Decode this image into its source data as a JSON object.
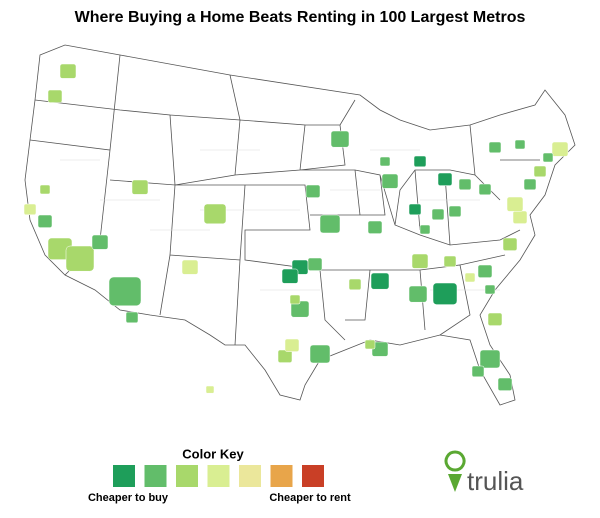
{
  "title": "Where Buying a Home Beats Renting in 100 Largest Metros",
  "color_key": {
    "title": "Color Key",
    "colors": [
      "#1e9e5a",
      "#62bd6a",
      "#a8d86b",
      "#d9ee92",
      "#ebe79b",
      "#e8a54a",
      "#c93f26"
    ],
    "low_label": "Cheaper to buy",
    "high_label": "Cheaper to rent"
  },
  "logo": "trulia"
}
